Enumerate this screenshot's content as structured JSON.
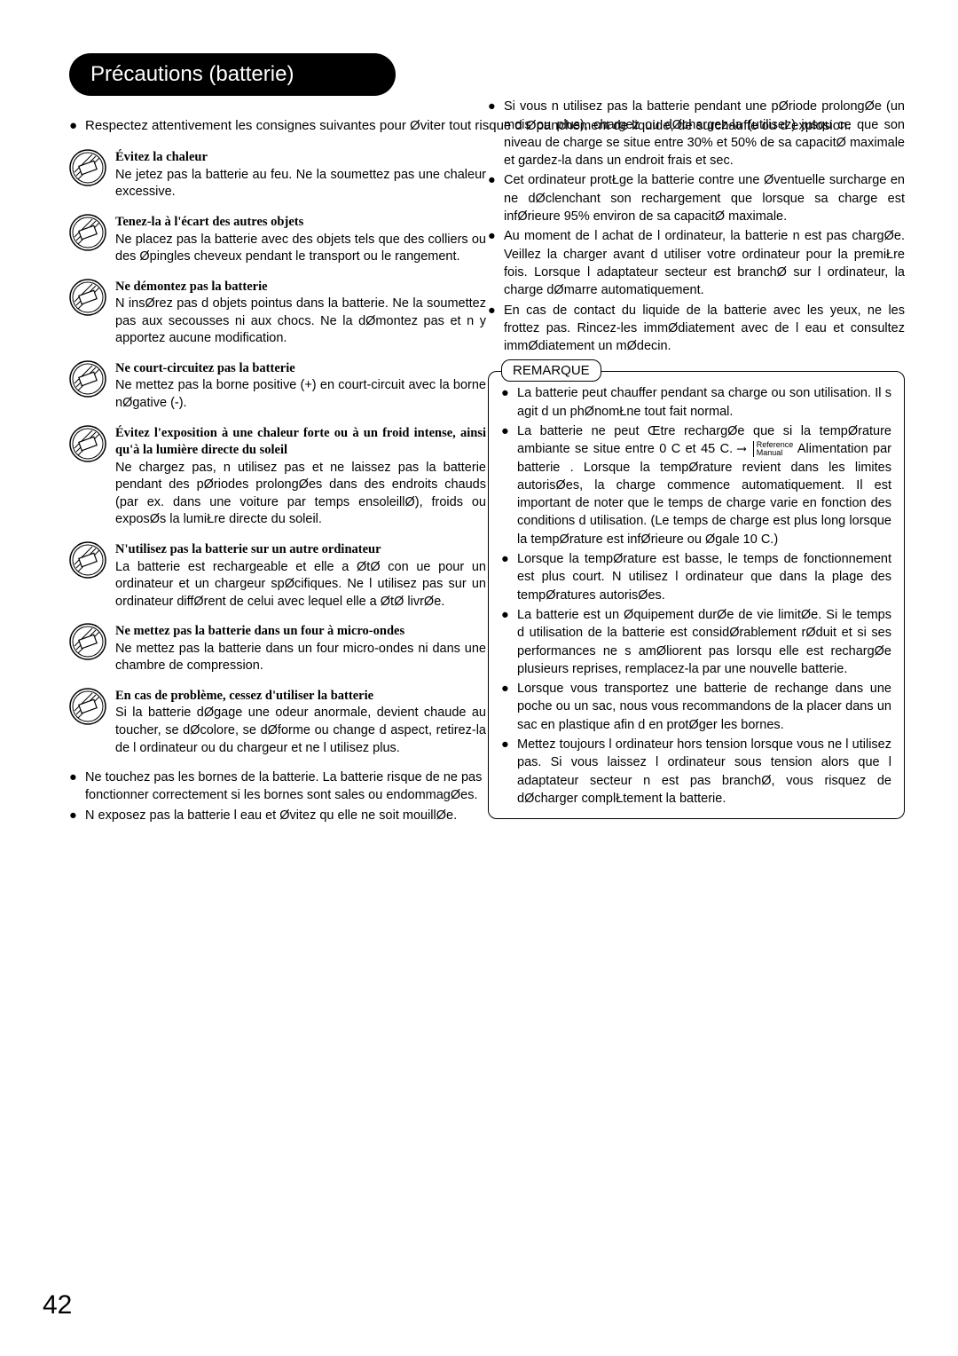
{
  "title": "Précautions (batterie)",
  "intro": "Respectez attentivement les consignes suivantes pour Øviter tout risque d Øpanchement de liquide, de surchauffe ou d explosion.",
  "left": [
    {
      "h": "Évitez la chaleur",
      "b": "Ne jetez pas la batterie au feu. Ne la soumettez pas  une chaleur excessive."
    },
    {
      "h": "Tenez-la à l'écart des autres objets",
      "b": "Ne placez pas la batterie avec des objets tels que des colliers ou des Øpingles  cheveux pendant le transport ou le rangement."
    },
    {
      "h": "Ne démontez pas la batterie",
      "b": "N insØrez pas d objets pointus dans la batterie. Ne la soumettez pas aux secousses ni aux chocs. Ne la dØmontez pas et n y apportez aucune modification."
    },
    {
      "h": "Ne court-circuitez pas la batterie",
      "b": "Ne mettez pas la borne positive (+) en court-circuit avec la borne nØgative (-)."
    },
    {
      "h": "Évitez l'exposition à une chaleur forte ou à un froid intense, ainsi qu'à la lumière directe du soleil",
      "b": "Ne chargez pas, n utilisez pas et ne laissez pas la batterie pendant des pØriodes prolongØes dans des endroits chauds (par ex. dans une voiture par temps ensoleillØ), froids ou exposØs  la lumiŁre directe du soleil."
    },
    {
      "h": "N'utilisez pas la batterie sur un autre ordinateur",
      "b": "La batterie est rechargeable et elle a ØtØ con ue pour un ordinateur et un chargeur spØcifiques.  Ne l utilisez pas sur un ordinateur diffØrent de celui avec lequel elle a ØtØ livrØe."
    },
    {
      "h": "Ne mettez pas la batterie dans un four à micro-ondes",
      "b": "Ne mettez pas la batterie dans un four  micro-ondes ni dans une chambre de compression."
    },
    {
      "h": "En cas de problème, cessez d'utiliser la batterie",
      "b": "Si la batterie dØgage une odeur anormale, devient chaude au toucher, se dØcolore, se dØforme ou change d aspect, retirez-la de l ordinateur ou du chargeur et ne l utilisez plus."
    }
  ],
  "right_bullets": [
    "Si vous n utilisez pas la batterie pendant une pØriode prolongØe (un mois ou plus), chargez ou dØchargez-la (utilisez) jusqu  ce que son niveau de charge se situe entre 30% et 50% de sa capacitØ maximale et gardez-la dans un endroit frais et sec.",
    "Cet ordinateur protŁge la batterie contre une Øventuelle surcharge en ne dØclenchant son rechargement que lorsque sa charge est infØrieure  95% environ de sa capacitØ maximale.",
    "Au moment de l achat de l ordinateur, la batterie n est pas chargØe. Veillez  la charger avant d utiliser votre ordinateur pour la premiŁre fois.  Lorsque l adaptateur secteur est branchØ sur l ordinateur, la charge dØmarre automatiquement.",
    "En cas de contact du liquide de la batterie avec les yeux, ne les frottez pas. Rincez-les immØdiatement avec de l eau et consultez immØdiatement un mØdecin."
  ],
  "remark_label": "REMARQUE",
  "remark_bullets": [
    "La batterie peut chauffer pendant sa charge ou son utilisation.  Il s agit d un phØnomŁne tout  fait normal.",
    "La batterie ne peut Œtre rechargØe que si la tempØrature ambiante se situe entre 0 C et 45 C. ⟶  Alimentation par batterie . Lorsque la tempØrature revient dans les limites autorisØes, la charge commence automatiquement.  Il est important de noter que le temps de charge varie en fonction des conditions d utilisation. (Le temps de charge est plus long lorsque la tempØrature est infØrieure ou Øgale  10 C.)",
    "Lorsque la tempØrature est basse, le temps de fonctionnement est plus court. N utilisez l ordinateur que dans la plage des tempØratures autorisØes.",
    "La batterie est un Øquipement  durØe de vie limitØe.  Si le temps d utilisation de la batterie est considØrablement rØduit et si ses performances ne s amØliorent pas lorsqu elle est rechargØe  plusieurs reprises, remplacez-la par une nouvelle batterie.",
    "Lorsque vous transportez une batterie de rechange dans une poche ou un sac, nous vous recommandons de la placer dans un sac en plastique afin d en protØger les bornes.",
    "Mettez toujours l ordinateur hors tension lorsque vous ne l utilisez pas. Si vous laissez l ordinateur sous tension alors que l adaptateur secteur n est pas branchØ, vous risquez de dØcharger complŁtement la batterie."
  ],
  "ref_small": "Reference Manual",
  "tail_bullets": [
    "Ne touchez pas les bornes de la batterie.  La batterie risque de ne pas fonctionner correctement si les bornes sont sales ou endommagØes.",
    "N exposez pas la batterie  l eau et Øvitez qu elle ne soit mouillØe."
  ],
  "page_number": "42",
  "colors": {
    "black": "#000000",
    "white": "#ffffff"
  }
}
